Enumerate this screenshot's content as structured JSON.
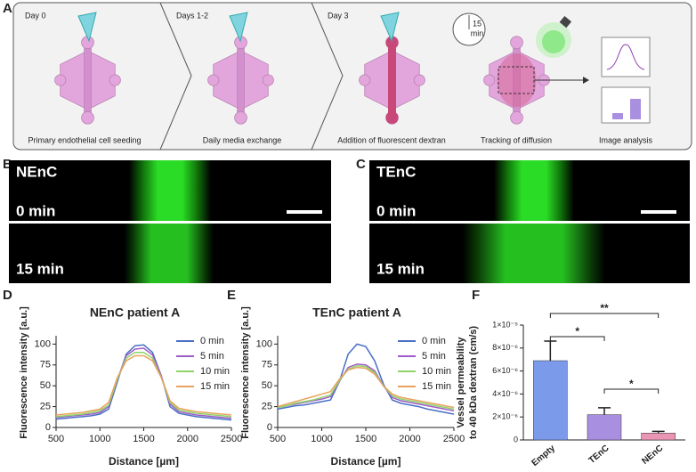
{
  "panel_a": {
    "label": "A",
    "steps": [
      {
        "day": "Day 0",
        "caption": "Primary endothelial cell seeding"
      },
      {
        "day": "Days 1-2",
        "caption": "Daily media exchange"
      },
      {
        "day": "Day 3",
        "caption": "Addition of fluorescent dextran"
      },
      {
        "caption": "Tracking of diffusion"
      },
      {
        "caption": "Image analysis"
      }
    ],
    "timer": [
      "15",
      "min"
    ]
  },
  "panel_b": {
    "label": "B",
    "name": "NEnC",
    "frames": [
      "0 min",
      "15 min"
    ]
  },
  "panel_c": {
    "label": "C",
    "name": "TEnC",
    "frames": [
      "0 min",
      "15 min"
    ]
  },
  "chart_data": [
    {
      "type": "line",
      "panel": "D",
      "title": "NEnC patient A",
      "xlabel": "Distance [µm]",
      "ylabel": "Fluorescence intensity [a.u.]",
      "x": [
        500,
        600,
        700,
        800,
        900,
        1000,
        1100,
        1200,
        1300,
        1400,
        1500,
        1600,
        1700,
        1800,
        1900,
        2000,
        2100,
        2200,
        2300,
        2400,
        2500
      ],
      "xlim": [
        500,
        2500
      ],
      "xticks": [
        500,
        1000,
        1500,
        2000,
        2500
      ],
      "ylim": [
        0,
        110
      ],
      "yticks": [
        0,
        25,
        50,
        75,
        100
      ],
      "series": [
        {
          "name": "0 min",
          "color": "#4a6fc4",
          "values": [
            10,
            11,
            12,
            13,
            14,
            16,
            22,
            55,
            88,
            98,
            99,
            90,
            62,
            25,
            17,
            15,
            13,
            12,
            11,
            10,
            9
          ]
        },
        {
          "name": "5 min",
          "color": "#a05cc8",
          "values": [
            12,
            13,
            14,
            15,
            16,
            18,
            25,
            58,
            86,
            94,
            95,
            87,
            62,
            28,
            19,
            17,
            15,
            14,
            13,
            12,
            11
          ]
        },
        {
          "name": "10 min",
          "color": "#8fd46a",
          "values": [
            13,
            14,
            15,
            16,
            18,
            20,
            27,
            58,
            83,
            90,
            90,
            83,
            60,
            30,
            21,
            19,
            17,
            16,
            15,
            14,
            13
          ]
        },
        {
          "name": "15 min",
          "color": "#e8a25c",
          "values": [
            15,
            16,
            17,
            18,
            20,
            22,
            30,
            60,
            80,
            86,
            86,
            80,
            60,
            32,
            23,
            21,
            19,
            18,
            17,
            16,
            15
          ]
        }
      ]
    },
    {
      "type": "line",
      "panel": "E",
      "title": "TEnC patient A",
      "xlabel": "Distance [µm]",
      "ylabel": "Fluorescence intensity [a.u.]",
      "x": [
        500,
        600,
        700,
        800,
        900,
        1000,
        1100,
        1200,
        1300,
        1400,
        1500,
        1600,
        1700,
        1800,
        1900,
        2000,
        2100,
        2200,
        2300,
        2400,
        2500
      ],
      "xlim": [
        500,
        2500
      ],
      "xticks": [
        500,
        1000,
        1500,
        2000,
        2500
      ],
      "ylim": [
        0,
        110
      ],
      "yticks": [
        0,
        25,
        50,
        75,
        100
      ],
      "series": [
        {
          "name": "0 min",
          "color": "#4a6fc4",
          "values": [
            22,
            24,
            26,
            27,
            29,
            31,
            33,
            55,
            88,
            100,
            97,
            80,
            52,
            33,
            29,
            27,
            25,
            22,
            20,
            18,
            16
          ]
        },
        {
          "name": "5 min",
          "color": "#a05cc8",
          "values": [
            24,
            26,
            28,
            30,
            32,
            34,
            37,
            55,
            72,
            76,
            75,
            68,
            50,
            36,
            32,
            30,
            28,
            26,
            24,
            22,
            20
          ]
        },
        {
          "name": "10 min",
          "color": "#8fd46a",
          "values": [
            24,
            26,
            29,
            31,
            33,
            36,
            39,
            56,
            70,
            74,
            73,
            66,
            50,
            38,
            34,
            32,
            30,
            28,
            26,
            24,
            22
          ]
        },
        {
          "name": "15 min",
          "color": "#e8a25c",
          "values": [
            25,
            28,
            31,
            34,
            37,
            40,
            43,
            58,
            69,
            72,
            71,
            64,
            50,
            40,
            36,
            34,
            32,
            30,
            28,
            26,
            24
          ]
        }
      ]
    },
    {
      "type": "bar",
      "panel": "F",
      "ylabel": [
        "Vessel permeability",
        "to 40 kDa dextran (cm/s)"
      ],
      "categories": [
        "Empty",
        "TEnC",
        "NEnC"
      ],
      "values": [
        6.9e-06,
        2.2e-06,
        6e-07
      ],
      "errors": [
        1.7e-06,
        6e-07,
        1.5e-07
      ],
      "colors": [
        "#7b9bea",
        "#a98fe0",
        "#e996b4"
      ],
      "ylim": [
        0,
        1e-05
      ],
      "yticks": [
        0,
        {
          "value": 2e-06,
          "label": "2×10⁻⁶"
        },
        {
          "value": 4e-06,
          "label": "4×10⁻⁶"
        },
        {
          "value": 6e-06,
          "label": "6×10⁻⁶"
        },
        {
          "value": 8e-06,
          "label": "8×10⁻⁶"
        },
        {
          "value": 1e-05,
          "label": "1×10⁻⁵"
        }
      ],
      "significance": [
        {
          "label": "**",
          "between": [
            0,
            2
          ]
        },
        {
          "label": "*",
          "between": [
            0,
            1
          ]
        },
        {
          "label": "*",
          "between": [
            1,
            2
          ]
        }
      ]
    }
  ]
}
